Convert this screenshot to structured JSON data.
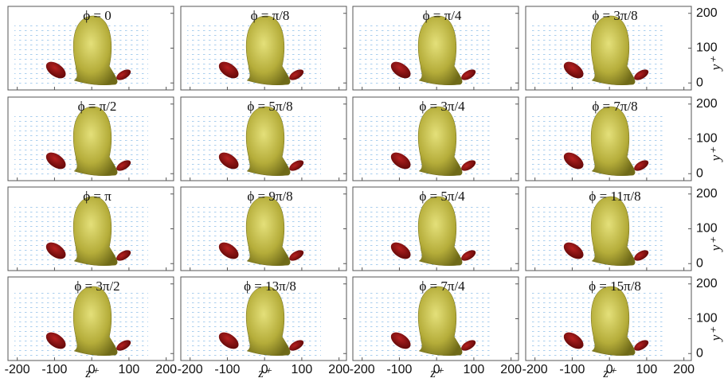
{
  "figure": {
    "panels": [
      "ϕ = 0",
      "ϕ = π/8",
      "ϕ = π/4",
      "ϕ = 3π/8",
      "ϕ = π/2",
      "ϕ = 5π/8",
      "ϕ = 3π/4",
      "ϕ = 7π/8",
      "ϕ = π",
      "ϕ = 9π/8",
      "ϕ = 5π/4",
      "ϕ = 11π/8",
      "ϕ = 3π/2",
      "ϕ = 13π/8",
      "ϕ = 7π/4",
      "ϕ = 15π/8"
    ],
    "xlabel": "z⁺",
    "ylabel": "y⁺",
    "xlim": [
      -225,
      220
    ],
    "xticks": [
      -200,
      -100,
      0,
      100,
      200
    ],
    "ylim": [
      -20,
      220
    ],
    "yticks": [
      0,
      100,
      200
    ]
  }
}
